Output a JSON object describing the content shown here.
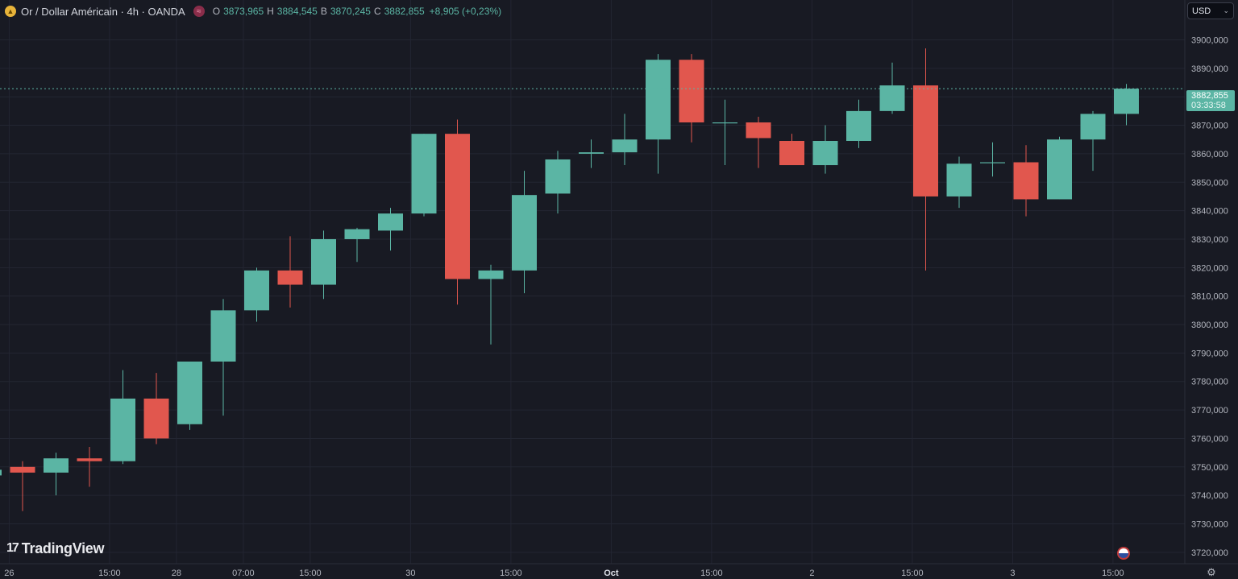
{
  "header": {
    "symbol_title": "Or / Dollar Américain · 4h · OANDA",
    "symbol_icon": "gold-bars-icon",
    "indicator_icon": "approx-equal-icon",
    "ohlc": {
      "o_label": "O",
      "o_value": "3873,965",
      "h_label": "H",
      "h_value": "3884,545",
      "b_label": "B",
      "b_value": "3870,245",
      "c_label": "C",
      "c_value": "3882,855",
      "change": "+8,905 (+0,23%)"
    }
  },
  "currency": {
    "value": "USD"
  },
  "price_label": {
    "price": "3882,855",
    "countdown": "03:33:58"
  },
  "branding": {
    "logo_text": "TradingView",
    "logo_mark": "17"
  },
  "colors": {
    "up": "#5bb5a4",
    "down": "#e1574e",
    "background": "#181a23",
    "grid": "#232632",
    "axis_text": "#b2b5be"
  },
  "chart_data": {
    "type": "candlestick",
    "current_price": 3882.855,
    "ylim": [
      3716,
      3914
    ],
    "y_ticks": [
      3720,
      3730,
      3740,
      3750,
      3760,
      3770,
      3780,
      3790,
      3800,
      3810,
      3820,
      3830,
      3840,
      3850,
      3860,
      3870,
      3880,
      3890,
      3900
    ],
    "y_tick_labels": [
      "3720,000",
      "3730,000",
      "3740,000",
      "3750,000",
      "3760,000",
      "3770,000",
      "3780,000",
      "3790,000",
      "3800,000",
      "3810,000",
      "3820,000",
      "3830,000",
      "3840,000",
      "3850,000",
      "3860,000",
      "3870,000",
      "3880,000",
      "3890,000",
      "3900,000"
    ],
    "x_labels": [
      {
        "text": "26",
        "index": 0.6
      },
      {
        "text": "15:00",
        "index": 3.6
      },
      {
        "text": "28",
        "index": 5.6
      },
      {
        "text": "07:00",
        "index": 7.6
      },
      {
        "text": "15:00",
        "index": 9.6
      },
      {
        "text": "30",
        "index": 12.6
      },
      {
        "text": "15:00",
        "index": 15.6
      },
      {
        "text": "Oct",
        "index": 18.6,
        "bold": true
      },
      {
        "text": "15:00",
        "index": 21.6
      },
      {
        "text": "2",
        "index": 24.6
      },
      {
        "text": "15:00",
        "index": 27.6
      },
      {
        "text": "3",
        "index": 30.6
      },
      {
        "text": "15:00",
        "index": 33.6
      }
    ],
    "candles": [
      {
        "o": 3747.0,
        "h": 3748.5,
        "l": 3746.5,
        "c": 3749.0
      },
      {
        "o": 3750.0,
        "h": 3752.0,
        "l": 3734.5,
        "c": 3748.0
      },
      {
        "o": 3748.0,
        "h": 3755.0,
        "l": 3740.0,
        "c": 3753.0
      },
      {
        "o": 3753.0,
        "h": 3757.0,
        "l": 3743.0,
        "c": 3752.0
      },
      {
        "o": 3752.0,
        "h": 3784.0,
        "l": 3751.0,
        "c": 3774.0
      },
      {
        "o": 3774.0,
        "h": 3783.0,
        "l": 3758.0,
        "c": 3760.0
      },
      {
        "o": 3765.0,
        "h": 3787.0,
        "l": 3763.0,
        "c": 3787.0
      },
      {
        "o": 3787.0,
        "h": 3809.0,
        "l": 3768.0,
        "c": 3805.0
      },
      {
        "o": 3805.0,
        "h": 3820.0,
        "l": 3801.0,
        "c": 3819.0
      },
      {
        "o": 3819.0,
        "h": 3831.0,
        "l": 3806.0,
        "c": 3814.0
      },
      {
        "o": 3814.0,
        "h": 3833.0,
        "l": 3809.0,
        "c": 3830.0
      },
      {
        "o": 3830.0,
        "h": 3834.0,
        "l": 3822.0,
        "c": 3833.5
      },
      {
        "o": 3833.0,
        "h": 3841.0,
        "l": 3826.0,
        "c": 3839.0
      },
      {
        "o": 3839.0,
        "h": 3867.0,
        "l": 3838.0,
        "c": 3867.0
      },
      {
        "o": 3867.0,
        "h": 3872.0,
        "l": 3807.0,
        "c": 3816.0
      },
      {
        "o": 3816.0,
        "h": 3821.0,
        "l": 3793.0,
        "c": 3819.0
      },
      {
        "o": 3819.0,
        "h": 3854.0,
        "l": 3811.0,
        "c": 3845.5
      },
      {
        "o": 3846.0,
        "h": 3861.0,
        "l": 3839.0,
        "c": 3858.0
      },
      {
        "o": 3860.0,
        "h": 3865.0,
        "l": 3855.0,
        "c": 3860.5
      },
      {
        "o": 3860.5,
        "h": 3874.0,
        "l": 3856.0,
        "c": 3865.0
      },
      {
        "o": 3865.0,
        "h": 3895.0,
        "l": 3853.0,
        "c": 3893.0
      },
      {
        "o": 3893.0,
        "h": 3895.0,
        "l": 3864.0,
        "c": 3871.0
      },
      {
        "o": 3871.0,
        "h": 3879.0,
        "l": 3856.0,
        "c": 3871.0
      },
      {
        "o": 3871.0,
        "h": 3873.0,
        "l": 3855.0,
        "c": 3865.5
      },
      {
        "o": 3864.5,
        "h": 3867.0,
        "l": 3856.0,
        "c": 3856.0
      },
      {
        "o": 3856.0,
        "h": 3870.0,
        "l": 3853.0,
        "c": 3864.5
      },
      {
        "o": 3864.5,
        "h": 3879.0,
        "l": 3862.0,
        "c": 3875.0
      },
      {
        "o": 3875.0,
        "h": 3892.0,
        "l": 3874.0,
        "c": 3884.0
      },
      {
        "o": 3884.0,
        "h": 3897.0,
        "l": 3819.0,
        "c": 3845.0
      },
      {
        "o": 3845.0,
        "h": 3859.0,
        "l": 3841.0,
        "c": 3856.5
      },
      {
        "o": 3857.0,
        "h": 3864.0,
        "l": 3852.0,
        "c": 3857.0
      },
      {
        "o": 3857.0,
        "h": 3863.0,
        "l": 3838.0,
        "c": 3844.0
      },
      {
        "o": 3844.0,
        "h": 3866.0,
        "l": 3844.0,
        "c": 3865.0
      },
      {
        "o": 3865.0,
        "h": 3875.0,
        "l": 3854.0,
        "c": 3874.0
      },
      {
        "o": 3874.0,
        "h": 3884.5,
        "l": 3870.0,
        "c": 3882.855
      }
    ]
  }
}
